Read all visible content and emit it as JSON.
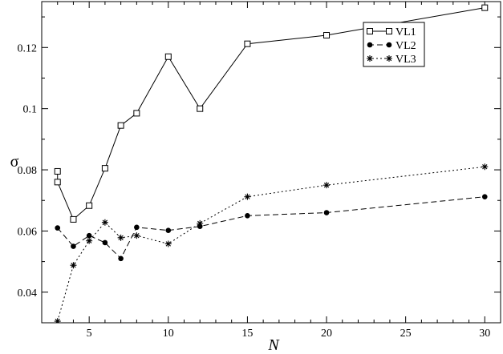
{
  "chart_data": {
    "type": "line",
    "title": "",
    "xlabel": "N",
    "ylabel": "σ",
    "xlim": [
      2,
      31
    ],
    "ylim": [
      0.03,
      0.135
    ],
    "x_ticks": [
      5,
      10,
      15,
      20,
      25,
      30
    ],
    "x_tick_labels": [
      "5",
      "10",
      "15",
      "20",
      "25",
      "30"
    ],
    "y_ticks": [
      0.04,
      0.06,
      0.08,
      0.1,
      0.12
    ],
    "y_tick_labels": [
      "0.04",
      "0.06",
      "0.08",
      "0.1",
      "0.12"
    ],
    "grid": false,
    "legend_position": "top-right",
    "series": [
      {
        "name": "VL1",
        "marker": "open-square",
        "line_style": "solid",
        "color": "#000000",
        "x": [
          3,
          3,
          4,
          5,
          6,
          7,
          8,
          10,
          12,
          15,
          20,
          30
        ],
        "y": [
          0.0795,
          0.076,
          0.0638,
          0.0683,
          0.0805,
          0.0945,
          0.0985,
          0.117,
          0.1,
          0.1212,
          0.124,
          0.133
        ]
      },
      {
        "name": "VL2",
        "marker": "filled-circle",
        "line_style": "dashed",
        "color": "#000000",
        "x": [
          3,
          4,
          5,
          6,
          7,
          8,
          10,
          12,
          15,
          20,
          30
        ],
        "y": [
          0.061,
          0.055,
          0.0585,
          0.0562,
          0.051,
          0.0612,
          0.0602,
          0.0615,
          0.065,
          0.066,
          0.0712
        ]
      },
      {
        "name": "VL3",
        "marker": "asterisk",
        "line_style": "dotted",
        "color": "#000000",
        "x": [
          3,
          4,
          5,
          6,
          7,
          8,
          10,
          12,
          15,
          20,
          30
        ],
        "y": [
          0.0305,
          0.0488,
          0.0568,
          0.0628,
          0.0578,
          0.0585,
          0.0558,
          0.0625,
          0.0712,
          0.075,
          0.081
        ]
      }
    ]
  }
}
